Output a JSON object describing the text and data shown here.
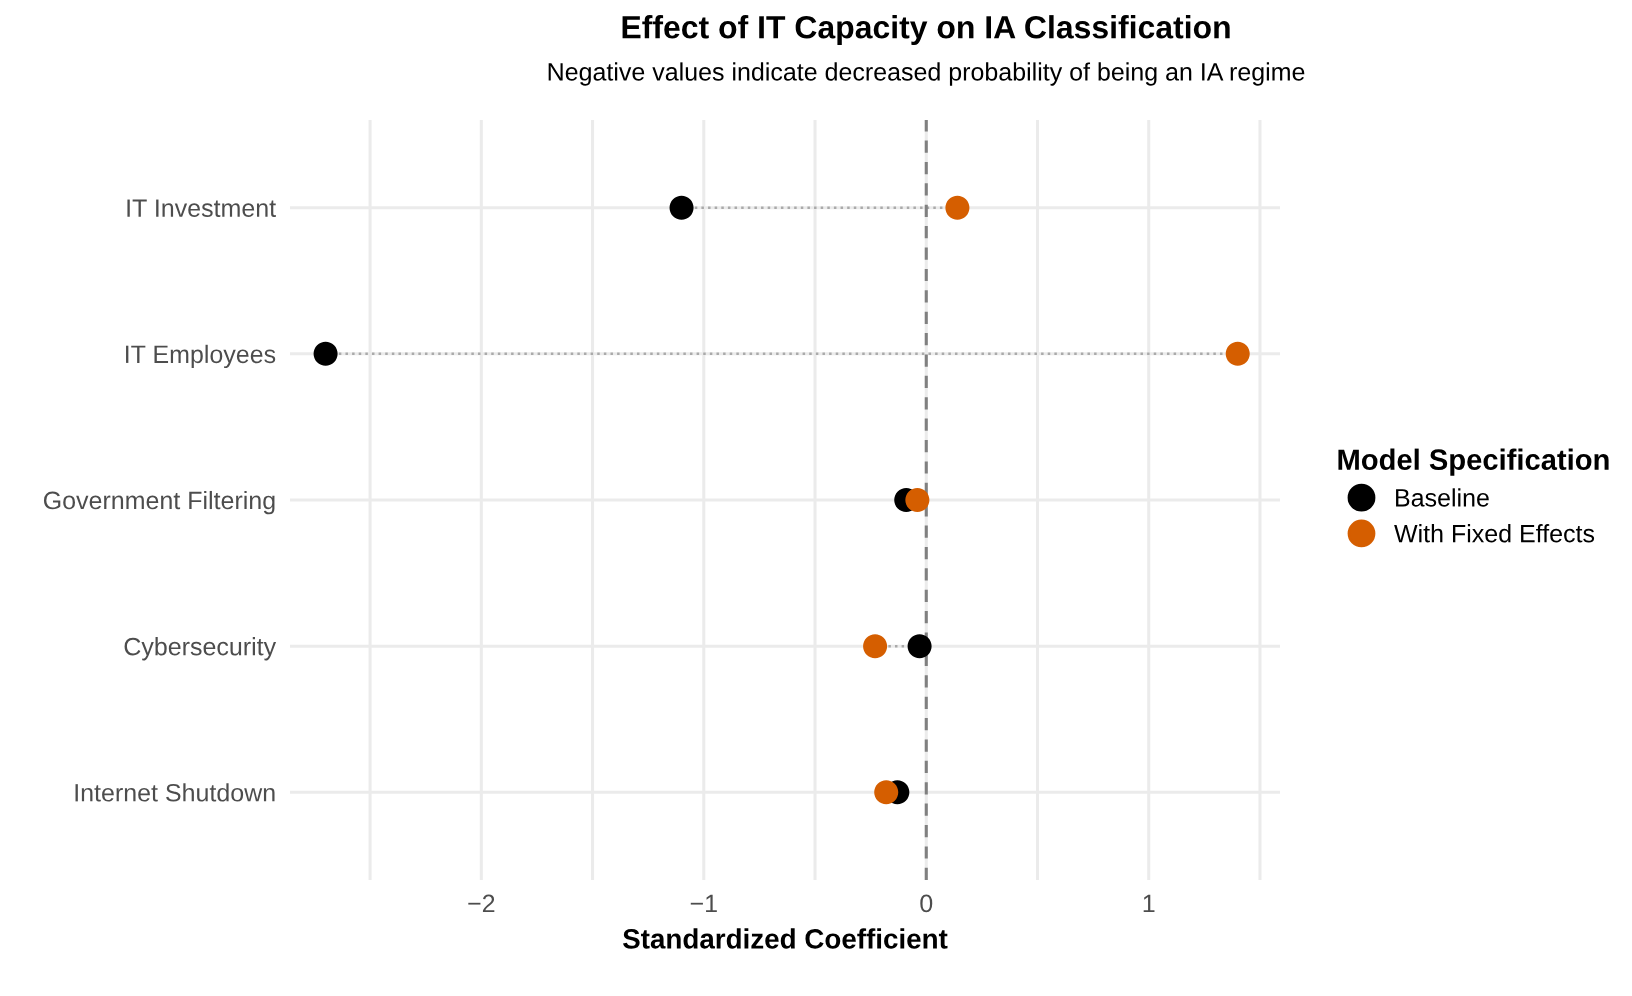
{
  "chart_data": {
    "type": "scatter",
    "orientation": "horizontal",
    "title": "Effect of IT Capacity on IA Classification",
    "subtitle": "Negative values indicate decreased probability of being an IA regime",
    "xlabel": "Standardized Coefficient",
    "legend_title": "Model Specification",
    "categories": [
      "IT Investment",
      "IT Employees",
      "Government Filtering",
      "Cybersecurity",
      "Internet Shutdown"
    ],
    "series": [
      {
        "name": "Baseline",
        "color": "#000000",
        "values": [
          -1.1,
          -2.7,
          -0.09,
          -0.03,
          -0.13
        ]
      },
      {
        "name": "With Fixed Effects",
        "color": "#d55e00",
        "values": [
          0.14,
          1.4,
          -0.04,
          -0.23,
          -0.18
        ]
      }
    ],
    "xlim": [
      -2.86,
      1.59
    ],
    "xticks": [
      {
        "value": -2.5,
        "label": null
      },
      -2,
      {
        "value": -1.5,
        "label": null
      },
      -1,
      {
        "value": -0.5,
        "label": null
      },
      0,
      {
        "value": 0.5,
        "label": null
      },
      1,
      {
        "value": 1.5,
        "label": null
      }
    ],
    "ref_lines": [
      {
        "axis": "x",
        "value": 0,
        "color": "#808080",
        "line_style": "dashed"
      }
    ],
    "grid": true,
    "legend": "right",
    "marker": "circle"
  }
}
